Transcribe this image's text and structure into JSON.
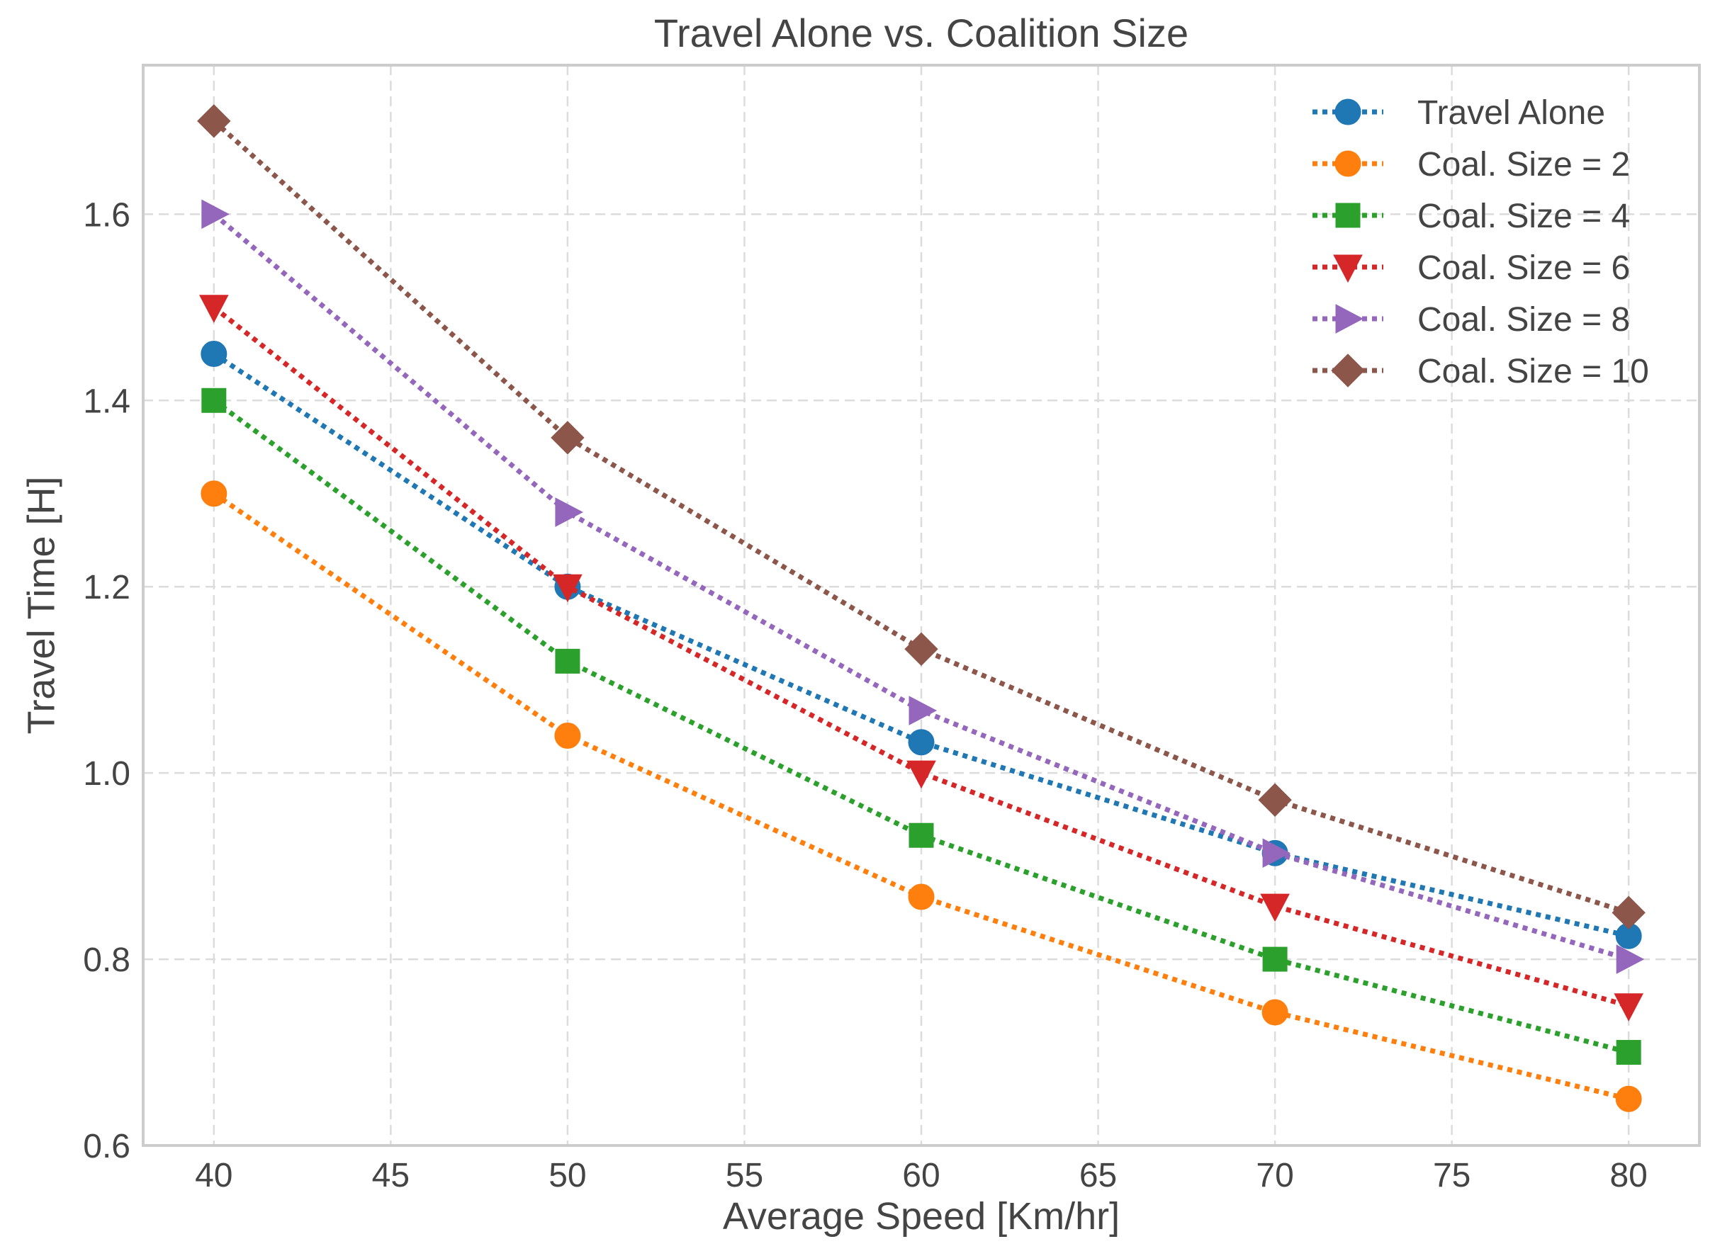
{
  "chart_data": {
    "type": "line",
    "title": "Travel Alone vs. Coalition Size",
    "xlabel": "Average Speed [Km/hr]",
    "ylabel": "Travel Time [H]",
    "xlim": [
      38,
      82
    ],
    "ylim": [
      0.6,
      1.76
    ],
    "xticks": [
      40,
      45,
      50,
      55,
      60,
      65,
      70,
      75,
      80
    ],
    "yticks": [
      0.6,
      0.8,
      1.0,
      1.2,
      1.4,
      1.6
    ],
    "xtick_labels": [
      "40",
      "45",
      "50",
      "55",
      "60",
      "65",
      "70",
      "75",
      "80"
    ],
    "ytick_labels": [
      "0.6",
      "0.8",
      "1.0",
      "1.2",
      "1.4",
      "1.6"
    ],
    "grid": true,
    "legend_position": "top-right",
    "x": [
      40,
      50,
      60,
      70,
      80
    ],
    "series": [
      {
        "name": "Travel Alone",
        "color": "#1f77b4",
        "marker": "circle",
        "values": [
          1.45,
          1.2,
          1.033,
          0.914,
          0.825
        ]
      },
      {
        "name": "Coal. Size = 2",
        "color": "#ff7f0e",
        "marker": "circle",
        "values": [
          1.3,
          1.04,
          0.867,
          0.743,
          0.65
        ]
      },
      {
        "name": "Coal. Size = 4",
        "color": "#2ca02c",
        "marker": "square",
        "values": [
          1.4,
          1.12,
          0.933,
          0.8,
          0.7
        ]
      },
      {
        "name": "Coal. Size = 6",
        "color": "#d62728",
        "marker": "triangle-down",
        "values": [
          1.5,
          1.2,
          1.0,
          0.857,
          0.75
        ]
      },
      {
        "name": "Coal. Size = 8",
        "color": "#9467bd",
        "marker": "triangle-right",
        "values": [
          1.6,
          1.28,
          1.067,
          0.914,
          0.8
        ]
      },
      {
        "name": "Coal. Size = 10",
        "color": "#8c564b",
        "marker": "diamond",
        "values": [
          1.7,
          1.36,
          1.133,
          0.971,
          0.85
        ]
      }
    ]
  }
}
